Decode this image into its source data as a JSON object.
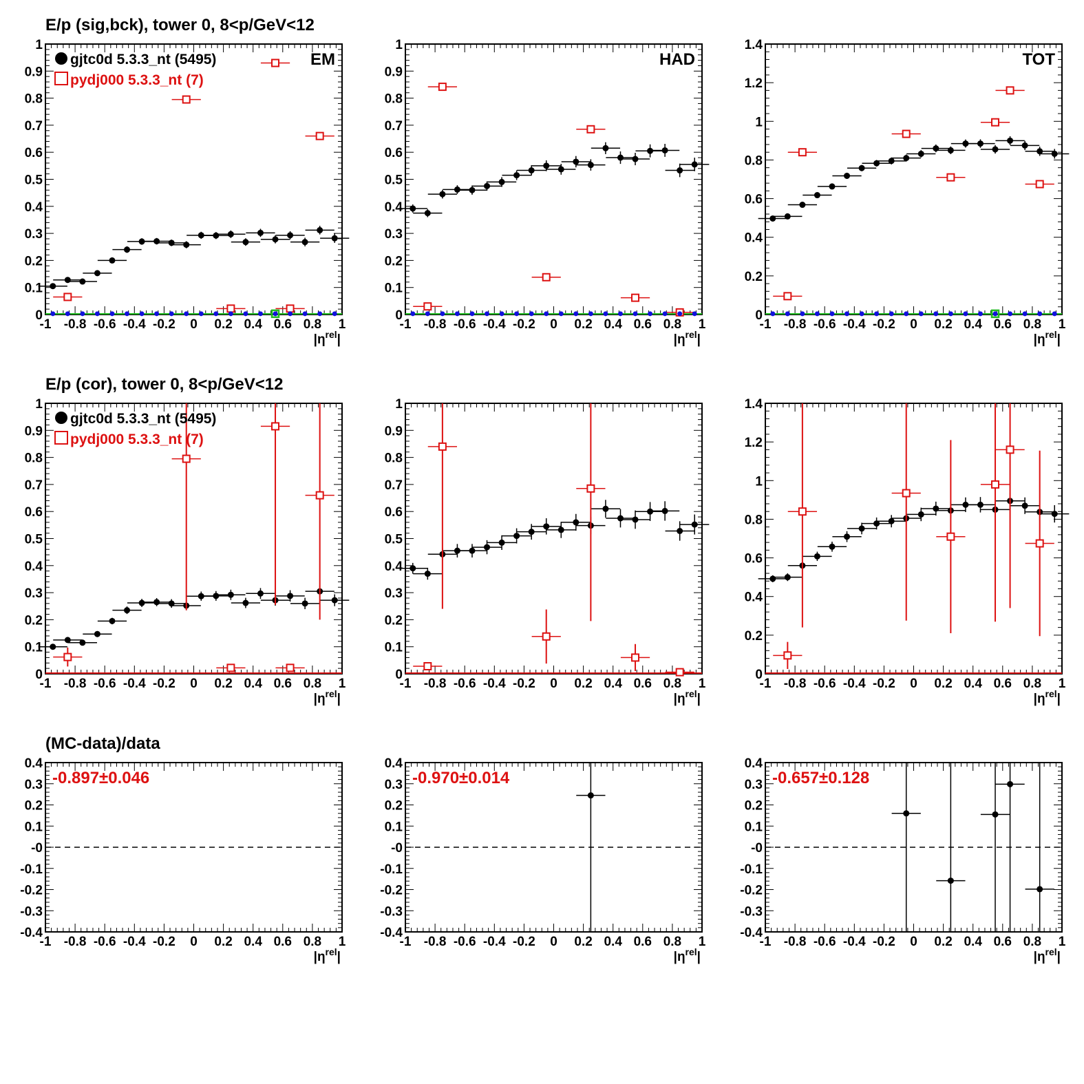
{
  "row_titles": {
    "row1": "E/p (sig,bck), tower 0,  8<p/GeV<12",
    "row2": "E/p (cor), tower 0,  8<p/GeV<12",
    "row3": "(MC-data)/data"
  },
  "panel_labels": {
    "em": "EM",
    "had": "HAD",
    "tot": "TOT"
  },
  "x_axis": {
    "label_base": "|η",
    "label_sup": "rel",
    "label_end": "|",
    "ticks": [
      "-1",
      "-0.8",
      "-0.6",
      "-0.4",
      "-0.2",
      "0",
      "0.2",
      "0.4",
      "0.6",
      "0.8",
      "1"
    ]
  },
  "legend": {
    "data_label": "gjtc0d 5.3.3_nt (5495)",
    "mc_label": "pydj000 5.3.3_nt (7)"
  },
  "ratio_labels": {
    "em": "-0.897±0.046",
    "had": "-0.970±0.014",
    "tot": "-0.657±0.128"
  },
  "colors": {
    "data": "#000000",
    "mc": "#dd1111",
    "background_data": "#1111dd",
    "background_mc": "#22bb22",
    "ratio_text": "#dd1111"
  },
  "chart_data": [
    {
      "id": "em_sigbck",
      "type": "scatter",
      "title": "E/p (sig,bck), tower 0,  8<p/GeV<12",
      "label": "EM",
      "xlim": [
        -1,
        1
      ],
      "ylim": [
        0,
        1
      ],
      "yticks": [
        0,
        0.1,
        0.2,
        0.3,
        0.4,
        0.5,
        0.6,
        0.7,
        0.8,
        0.9,
        1
      ],
      "series": [
        {
          "name": "gjtc0d 5.3.3_nt (5495)",
          "style": "data",
          "x": [
            -0.95,
            -0.85,
            -0.75,
            -0.65,
            -0.55,
            -0.45,
            -0.35,
            -0.25,
            -0.15,
            -0.05,
            0.05,
            0.15,
            0.25,
            0.35,
            0.45,
            0.55,
            0.65,
            0.75,
            0.85,
            0.95
          ],
          "y": [
            0.105,
            0.128,
            0.122,
            0.153,
            0.2,
            0.24,
            0.27,
            0.271,
            0.265,
            0.258,
            0.293,
            0.292,
            0.297,
            0.268,
            0.302,
            0.278,
            0.293,
            0.268,
            0.312,
            0.282
          ],
          "err": [
            0.006,
            0.008,
            0.009,
            0.01,
            0.01,
            0.012,
            0.012,
            0.012,
            0.012,
            0.013,
            0.013,
            0.013,
            0.014,
            0.014,
            0.015,
            0.015,
            0.015,
            0.016,
            0.016,
            0.017
          ]
        },
        {
          "name": "pydj000 5.3.3_nt (7)",
          "style": "mc",
          "x": [
            -0.85,
            -0.05,
            0.25,
            0.55,
            0.65,
            0.85
          ],
          "y": [
            0.065,
            0.795,
            0.022,
            0.93,
            0.022,
            0.66
          ],
          "err": [
            0,
            0,
            0,
            0,
            0,
            0
          ]
        },
        {
          "name": "",
          "style": "bkg_data",
          "y_all": 0.003
        },
        {
          "name": "",
          "style": "bkg_mc",
          "x": [
            0.55
          ],
          "y": [
            0.003
          ]
        }
      ]
    },
    {
      "id": "had_sigbck",
      "type": "scatter",
      "label": "HAD",
      "xlim": [
        -1,
        1
      ],
      "ylim": [
        0,
        1
      ],
      "yticks": [
        0,
        0.1,
        0.2,
        0.3,
        0.4,
        0.5,
        0.6,
        0.7,
        0.8,
        0.9,
        1
      ],
      "series": [
        {
          "name": "gjtc0d 5.3.3_nt (5495)",
          "style": "data",
          "x": [
            -0.95,
            -0.85,
            -0.75,
            -0.65,
            -0.55,
            -0.45,
            -0.35,
            -0.25,
            -0.15,
            -0.05,
            0.05,
            0.15,
            0.25,
            0.35,
            0.45,
            0.55,
            0.65,
            0.75,
            0.85,
            0.95
          ],
          "y": [
            0.392,
            0.375,
            0.445,
            0.462,
            0.46,
            0.475,
            0.49,
            0.515,
            0.533,
            0.55,
            0.537,
            0.565,
            0.553,
            0.615,
            0.58,
            0.575,
            0.605,
            0.607,
            0.533,
            0.555
          ],
          "err": [
            0.015,
            0.015,
            0.016,
            0.016,
            0.017,
            0.017,
            0.018,
            0.018,
            0.019,
            0.02,
            0.02,
            0.021,
            0.021,
            0.022,
            0.023,
            0.023,
            0.024,
            0.024,
            0.025,
            0.025
          ]
        },
        {
          "name": "pydj000 5.3.3_nt (7)",
          "style": "mc",
          "x": [
            -0.85,
            -0.75,
            -0.05,
            0.25,
            0.55,
            0.85
          ],
          "y": [
            0.03,
            0.842,
            0.138,
            0.685,
            0.062,
            0.008
          ],
          "err": [
            0,
            0,
            0,
            0,
            0,
            0
          ]
        },
        {
          "name": "",
          "style": "bkg_data",
          "y_all": 0.003
        }
      ]
    },
    {
      "id": "tot_sigbck",
      "type": "scatter",
      "label": "TOT",
      "xlim": [
        -1,
        1
      ],
      "ylim": [
        0,
        1.4
      ],
      "yticks": [
        0,
        0.2,
        0.4,
        0.6,
        0.8,
        1,
        1.2,
        1.4
      ],
      "series": [
        {
          "name": "gjtc0d 5.3.3_nt (5495)",
          "style": "data",
          "x": [
            -0.95,
            -0.85,
            -0.75,
            -0.65,
            -0.55,
            -0.45,
            -0.35,
            -0.25,
            -0.15,
            -0.05,
            0.05,
            0.15,
            0.25,
            0.35,
            0.45,
            0.55,
            0.65,
            0.75,
            0.85,
            0.95
          ],
          "y": [
            0.497,
            0.508,
            0.568,
            0.618,
            0.663,
            0.718,
            0.758,
            0.783,
            0.795,
            0.81,
            0.832,
            0.86,
            0.85,
            0.885,
            0.885,
            0.855,
            0.9,
            0.875,
            0.845,
            0.832
          ],
          "err": [
            0.012,
            0.012,
            0.013,
            0.014,
            0.015,
            0.016,
            0.016,
            0.017,
            0.018,
            0.018,
            0.019,
            0.02,
            0.02,
            0.021,
            0.022,
            0.022,
            0.023,
            0.024,
            0.024,
            0.025
          ]
        },
        {
          "name": "pydj000 5.3.3_nt (7)",
          "style": "mc",
          "x": [
            -0.85,
            -0.75,
            -0.05,
            0.25,
            0.55,
            0.65,
            0.85
          ],
          "y": [
            0.095,
            0.84,
            0.935,
            0.71,
            0.995,
            1.16,
            0.675
          ],
          "err": [
            0,
            0,
            0,
            0,
            0,
            0,
            0
          ]
        },
        {
          "name": "",
          "style": "bkg_data",
          "y_all": 0.004
        },
        {
          "name": "",
          "style": "bkg_mc",
          "x": [
            0.55
          ],
          "y": [
            0.004
          ]
        }
      ]
    },
    {
      "id": "em_cor",
      "type": "scatter",
      "title": "E/p (cor), tower 0,  8<p/GeV<12",
      "xlim": [
        -1,
        1
      ],
      "ylim": [
        0,
        1
      ],
      "yticks": [
        0,
        0.1,
        0.2,
        0.3,
        0.4,
        0.5,
        0.6,
        0.7,
        0.8,
        0.9,
        1
      ],
      "series": [
        {
          "name": "gjtc0d 5.3.3_nt (5495)",
          "style": "data",
          "x": [
            -0.95,
            -0.85,
            -0.75,
            -0.65,
            -0.55,
            -0.45,
            -0.35,
            -0.25,
            -0.15,
            -0.05,
            0.05,
            0.15,
            0.25,
            0.35,
            0.45,
            0.55,
            0.65,
            0.75,
            0.85,
            0.95
          ],
          "y": [
            0.1,
            0.125,
            0.115,
            0.147,
            0.195,
            0.235,
            0.262,
            0.265,
            0.26,
            0.252,
            0.287,
            0.288,
            0.292,
            0.262,
            0.297,
            0.272,
            0.288,
            0.26,
            0.305,
            0.272
          ],
          "err": [
            0.007,
            0.009,
            0.01,
            0.011,
            0.012,
            0.014,
            0.015,
            0.015,
            0.016,
            0.017,
            0.017,
            0.018,
            0.019,
            0.019,
            0.02,
            0.02,
            0.021,
            0.021,
            0.022,
            0.022
          ]
        },
        {
          "name": "pydj000 5.3.3_nt (7)",
          "style": "mc",
          "x": [
            -0.85,
            -0.05,
            0.25,
            0.55,
            0.65,
            0.85
          ],
          "y": [
            0.062,
            0.795,
            0.022,
            0.915,
            0.022,
            0.66
          ],
          "err": [
            0.035,
            0.56,
            0.0,
            0.66,
            0.0,
            0.46
          ]
        }
      ]
    },
    {
      "id": "had_cor",
      "type": "scatter",
      "xlim": [
        -1,
        1
      ],
      "ylim": [
        0,
        1
      ],
      "yticks": [
        0,
        0.1,
        0.2,
        0.3,
        0.4,
        0.5,
        0.6,
        0.7,
        0.8,
        0.9,
        1
      ],
      "series": [
        {
          "name": "gjtc0d 5.3.3_nt (5495)",
          "style": "data",
          "x": [
            -0.95,
            -0.85,
            -0.75,
            -0.65,
            -0.55,
            -0.45,
            -0.35,
            -0.25,
            -0.15,
            -0.05,
            0.05,
            0.15,
            0.25,
            0.35,
            0.45,
            0.55,
            0.65,
            0.75,
            0.85,
            0.95
          ],
          "y": [
            0.39,
            0.37,
            0.442,
            0.455,
            0.455,
            0.468,
            0.485,
            0.51,
            0.525,
            0.545,
            0.532,
            0.56,
            0.548,
            0.61,
            0.575,
            0.57,
            0.6,
            0.602,
            0.528,
            0.552
          ],
          "err": [
            0.02,
            0.022,
            0.024,
            0.025,
            0.025,
            0.026,
            0.027,
            0.028,
            0.029,
            0.03,
            0.03,
            0.031,
            0.032,
            0.033,
            0.034,
            0.034,
            0.035,
            0.036,
            0.036,
            0.037
          ]
        },
        {
          "name": "pydj000 5.3.3_nt (7)",
          "style": "mc",
          "x": [
            -0.85,
            -0.75,
            -0.05,
            0.25,
            0.55,
            0.85
          ],
          "y": [
            0.028,
            0.84,
            0.138,
            0.685,
            0.06,
            0.006
          ],
          "err": [
            0.0,
            0.6,
            0.1,
            0.49,
            0.05,
            0.0
          ]
        }
      ]
    },
    {
      "id": "tot_cor",
      "type": "scatter",
      "xlim": [
        -1,
        1
      ],
      "ylim": [
        0,
        1.4
      ],
      "yticks": [
        0,
        0.2,
        0.4,
        0.6,
        0.8,
        1,
        1.2,
        1.4
      ],
      "series": [
        {
          "name": "gjtc0d 5.3.3_nt (5495)",
          "style": "data",
          "x": [
            -0.95,
            -0.85,
            -0.75,
            -0.65,
            -0.55,
            -0.45,
            -0.35,
            -0.25,
            -0.15,
            -0.05,
            0.05,
            0.15,
            0.25,
            0.35,
            0.45,
            0.55,
            0.65,
            0.75,
            0.85,
            0.95
          ],
          "y": [
            0.492,
            0.5,
            0.56,
            0.608,
            0.658,
            0.71,
            0.752,
            0.778,
            0.79,
            0.805,
            0.825,
            0.855,
            0.845,
            0.875,
            0.875,
            0.85,
            0.895,
            0.87,
            0.838,
            0.828
          ],
          "err": [
            0.018,
            0.02,
            0.022,
            0.024,
            0.026,
            0.028,
            0.03,
            0.031,
            0.032,
            0.034,
            0.035,
            0.036,
            0.037,
            0.038,
            0.04,
            0.041,
            0.042,
            0.043,
            0.044,
            0.045
          ]
        },
        {
          "name": "pydj000 5.3.3_nt (7)",
          "style": "mc",
          "x": [
            -0.85,
            -0.75,
            -0.05,
            0.25,
            0.55,
            0.65,
            0.85
          ],
          "y": [
            0.095,
            0.84,
            0.935,
            0.71,
            0.98,
            1.16,
            0.675
          ],
          "err": [
            0.07,
            0.6,
            0.66,
            0.5,
            0.71,
            0.82,
            0.48
          ]
        }
      ]
    },
    {
      "id": "em_ratio",
      "type": "scatter",
      "title": "(MC-data)/data",
      "annotation": "-0.897±0.046",
      "xlim": [
        -1,
        1
      ],
      "ylim": [
        -0.4,
        0.4
      ],
      "yticks": [
        -0.4,
        -0.3,
        -0.2,
        -0.1,
        0,
        0.1,
        0.2,
        0.3,
        0.4
      ],
      "ytick_labels": [
        "-0.4",
        "-0.3",
        "-0.2",
        "-0.1",
        "-0",
        "0.1",
        "0.2",
        "0.3",
        "0.4"
      ],
      "series": [
        {
          "name": "",
          "style": "ratio",
          "x": [],
          "y": [],
          "err": []
        }
      ]
    },
    {
      "id": "had_ratio",
      "type": "scatter",
      "annotation": "-0.970±0.014",
      "xlim": [
        -1,
        1
      ],
      "ylim": [
        -0.4,
        0.4
      ],
      "yticks": [
        -0.4,
        -0.3,
        -0.2,
        -0.1,
        0,
        0.1,
        0.2,
        0.3,
        0.4
      ],
      "ytick_labels": [
        "-0.4",
        "-0.3",
        "-0.2",
        "-0.1",
        "-0",
        "0.1",
        "0.2",
        "0.3",
        "0.4"
      ],
      "series": [
        {
          "name": "",
          "style": "ratio",
          "x": [
            0.25
          ],
          "y": [
            0.245
          ],
          "err": [
            1.0
          ]
        }
      ]
    },
    {
      "id": "tot_ratio",
      "type": "scatter",
      "annotation": "-0.657±0.128",
      "xlim": [
        -1,
        1
      ],
      "ylim": [
        -0.4,
        0.4
      ],
      "yticks": [
        -0.4,
        -0.3,
        -0.2,
        -0.1,
        0,
        0.1,
        0.2,
        0.3,
        0.4
      ],
      "ytick_labels": [
        "-0.4",
        "-0.3",
        "-0.2",
        "-0.1",
        "-0",
        "0.1",
        "0.2",
        "0.3",
        "0.4"
      ],
      "series": [
        {
          "name": "",
          "style": "ratio",
          "x": [
            -0.05,
            0.25,
            0.55,
            0.65,
            0.85
          ],
          "y": [
            0.16,
            -0.158,
            0.155,
            0.298,
            -0.198
          ],
          "err": [
            1.0,
            1.0,
            1.0,
            1.0,
            1.0
          ]
        }
      ]
    }
  ]
}
